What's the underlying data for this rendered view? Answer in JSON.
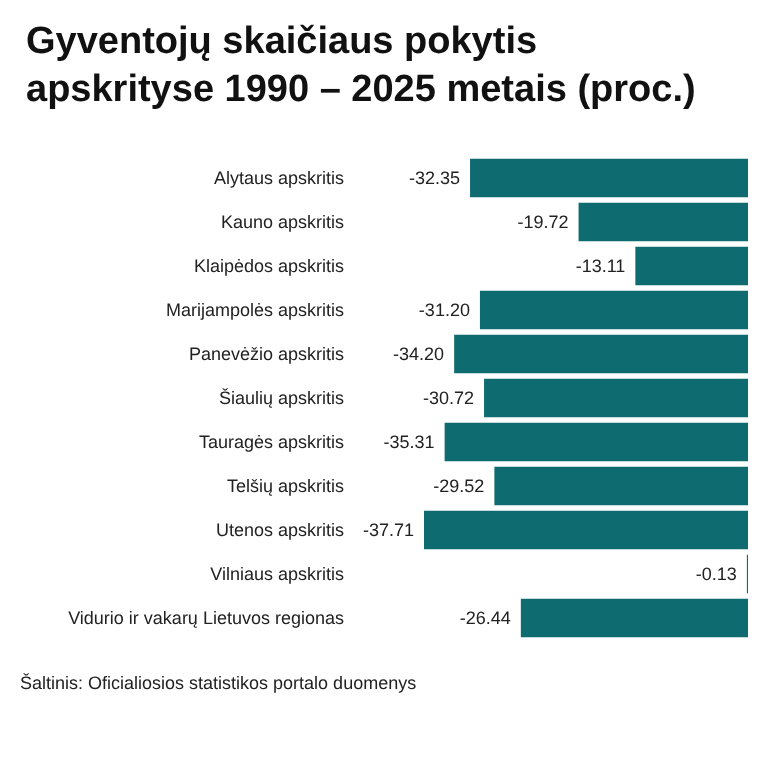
{
  "chart_data": {
    "type": "bar",
    "orientation": "horizontal",
    "title": "Gyventojų skaičiaus pokytis\napskrityse 1990 – 2025 metais (proc.)",
    "categories": [
      "Alytaus apskritis",
      "Kauno apskritis",
      "Klaipėdos apskritis",
      "Marijampolės apskritis",
      "Panevėžio apskritis",
      "Šiaulių apskritis",
      "Tauragės apskritis",
      "Telšių apskritis",
      "Utenos apskritis",
      "Vilniaus apskritis",
      "Vidurio ir vakarų Lietuvos regionas"
    ],
    "values": [
      -32.35,
      -19.72,
      -13.11,
      -31.2,
      -34.2,
      -30.72,
      -35.31,
      -29.52,
      -37.71,
      -0.13,
      -26.44
    ],
    "value_labels": [
      "-32.35",
      "-19.72",
      "-13.11",
      "-31.20",
      "-34.20",
      "-30.72",
      "-35.31",
      "-29.52",
      "-37.71",
      "-0.13",
      "-26.44"
    ],
    "color": "#0e6b70",
    "tick_labels": false,
    "grid": false,
    "annotations": [
      "Šaltinis: Oficialiosios statistikos portalo duomenys"
    ]
  }
}
